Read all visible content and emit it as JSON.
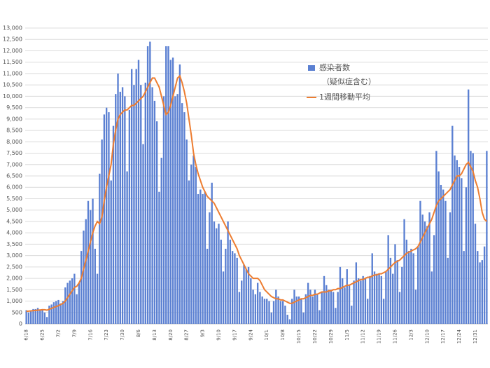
{
  "chart_data": {
    "type": "bar",
    "categories": [
      "6/18",
      null,
      null,
      null,
      null,
      null,
      null,
      "6/25",
      null,
      null,
      null,
      null,
      null,
      null,
      "7/2",
      null,
      null,
      null,
      null,
      null,
      null,
      "7/9",
      null,
      null,
      null,
      null,
      null,
      null,
      "7/16",
      null,
      null,
      null,
      null,
      null,
      null,
      "7/23",
      null,
      null,
      null,
      null,
      null,
      null,
      "7/30",
      null,
      null,
      null,
      null,
      null,
      null,
      "8/6",
      null,
      null,
      null,
      null,
      null,
      null,
      "8/13",
      null,
      null,
      null,
      null,
      null,
      null,
      "8/20",
      null,
      null,
      null,
      null,
      null,
      null,
      "8/27",
      null,
      null,
      null,
      null,
      null,
      null,
      "9/3",
      null,
      null,
      null,
      null,
      null,
      null,
      "9/10",
      null,
      null,
      null,
      null,
      null,
      null,
      "9/17",
      null,
      null,
      null,
      null,
      null,
      null,
      "9/24",
      null,
      null,
      null,
      null,
      null,
      null,
      "10/1",
      null,
      null,
      null,
      null,
      null,
      null,
      "10/8",
      null,
      null,
      null,
      null,
      null,
      null,
      "10/15",
      null,
      null,
      null,
      null,
      null,
      null,
      "10/22",
      null,
      null,
      null,
      null,
      null,
      null,
      "10/29",
      null,
      null,
      null,
      null,
      null,
      null,
      "11/5",
      null,
      null,
      null,
      null,
      null,
      null,
      "11/12",
      null,
      null,
      null,
      null,
      null,
      null,
      "11/19",
      null,
      null,
      null,
      null,
      null,
      null,
      "11/26",
      null,
      null,
      null,
      null,
      null,
      null,
      "12/3",
      null,
      null,
      null,
      null,
      null,
      null,
      "12/10",
      null,
      null,
      null,
      null,
      null,
      null,
      "12/17",
      null,
      null,
      null,
      null,
      null,
      null,
      "12/24",
      null,
      null,
      null,
      null,
      null,
      null,
      "12/31",
      null,
      null,
      null,
      null,
      null
    ],
    "series": [
      {
        "name": "感染者数\n（疑似症含む）",
        "type": "bar",
        "color": "#5b80d2",
        "values": [
          600,
          500,
          550,
          650,
          650,
          700,
          600,
          650,
          500,
          300,
          800,
          850,
          950,
          1000,
          1050,
          900,
          1000,
          1600,
          1800,
          1900,
          2000,
          2200,
          1300,
          1800,
          3200,
          4100,
          4600,
          5400,
          5000,
          5500,
          3300,
          2200,
          6600,
          8100,
          9200,
          9500,
          9300,
          6300,
          8700,
          10100,
          11000,
          10200,
          10400,
          10000,
          6700,
          9400,
          11200,
          10500,
          11200,
          11600,
          10500,
          7900,
          10600,
          12200,
          12400,
          10400,
          9800,
          8900,
          5800,
          7300,
          10000,
          12200,
          12200,
          11600,
          11700,
          10000,
          10100,
          11400,
          9700,
          9300,
          8100,
          6300,
          7000,
          7400,
          6900,
          5700,
          5900,
          5700,
          5800,
          3300,
          4900,
          6200,
          4500,
          4200,
          4400,
          3700,
          2300,
          3300,
          4500,
          3700,
          3200,
          3100,
          2900,
          1400,
          1900,
          2600,
          2400,
          2500,
          2000,
          1500,
          1300,
          1800,
          1400,
          1200,
          1100,
          1100,
          1000,
          500,
          1000,
          1500,
          1200,
          1000,
          1000,
          800,
          400,
          200,
          1100,
          1500,
          1200,
          1200,
          1100,
          500,
          1300,
          1800,
          1500,
          1200,
          1500,
          1300,
          600,
          1400,
          2100,
          1700,
          1500,
          1500,
          1400,
          700,
          1400,
          2500,
          2000,
          1600,
          2400,
          1700,
          800,
          1900,
          2700,
          2000,
          1900,
          2100,
          2000,
          1100,
          2100,
          3100,
          2300,
          2200,
          2200,
          2100,
          1100,
          2300,
          3900,
          2900,
          2200,
          3500,
          2800,
          1400,
          2500,
          4600,
          3700,
          3200,
          3300,
          3100,
          1500,
          3400,
          5400,
          4800,
          4500,
          4300,
          4900,
          2300,
          3900,
          7600,
          6700,
          6100,
          5900,
          5400,
          2900,
          4900,
          8700,
          7400,
          7200,
          6900,
          6400,
          3200,
          6000,
          10300,
          7600,
          7500,
          4400,
          3200,
          2700,
          2800,
          3400,
          7600
        ]
      },
      {
        "name": "1週間移動平均",
        "type": "line",
        "color": "#ed7d31",
        "values": [
          550,
          560,
          570,
          580,
          590,
          600,
          610,
          620,
          620,
          600,
          640,
          680,
          720,
          760,
          800,
          850,
          900,
          1000,
          1150,
          1300,
          1450,
          1600,
          1650,
          1800,
          2000,
          2400,
          2800,
          3200,
          3600,
          4000,
          4300,
          4500,
          4400,
          4700,
          5400,
          6000,
          6500,
          7000,
          7900,
          8500,
          9000,
          9200,
          9300,
          9400,
          9400,
          9500,
          9600,
          9600,
          9700,
          9800,
          9900,
          10000,
          10200,
          10400,
          10600,
          10800,
          10800,
          10600,
          10400,
          10000,
          9600,
          9200,
          9300,
          9600,
          10000,
          10400,
          10800,
          10900,
          10600,
          10200,
          9700,
          9000,
          8300,
          7500,
          7000,
          6600,
          6300,
          6000,
          5800,
          5600,
          5500,
          5400,
          5300,
          5100,
          4900,
          4700,
          4500,
          4300,
          4100,
          3900,
          3700,
          3500,
          3300,
          3000,
          2800,
          2600,
          2400,
          2200,
          2100,
          2000,
          2000,
          2000,
          1900,
          1700,
          1500,
          1400,
          1300,
          1200,
          1150,
          1100,
          1100,
          1050,
          1050,
          1000,
          950,
          900,
          900,
          950,
          1000,
          1050,
          1100,
          1100,
          1150,
          1200,
          1250,
          1250,
          1300,
          1300,
          1350,
          1400,
          1400,
          1400,
          1450,
          1450,
          1500,
          1500,
          1550,
          1550,
          1600,
          1650,
          1700,
          1700,
          1750,
          1800,
          1850,
          1900,
          1950,
          1950,
          2000,
          2050,
          2050,
          2100,
          2150,
          2150,
          2200,
          2200,
          2250,
          2300,
          2400,
          2500,
          2600,
          2700,
          2750,
          2800,
          2900,
          3000,
          3100,
          3150,
          3200,
          3250,
          3300,
          3400,
          3600,
          3800,
          4000,
          4200,
          4400,
          4600,
          4900,
          5200,
          5400,
          5500,
          5600,
          5700,
          5800,
          5900,
          6100,
          6300,
          6500,
          6500,
          6600,
          6800,
          7000,
          7100,
          6900,
          6700,
          6300,
          6000,
          5500,
          4900,
          4600,
          4500
        ]
      }
    ],
    "ylim": [
      0,
      13000
    ],
    "yticks": [
      0,
      500,
      {
        "value": 1000,
        "label": "1,000"
      },
      {
        "value": 1500,
        "label": "1,500"
      },
      {
        "value": 2000,
        "label": "2,000"
      },
      {
        "value": 2500,
        "label": "2,500"
      },
      {
        "value": 3000,
        "label": "3,000"
      },
      {
        "value": 3500,
        "label": "3,500"
      },
      {
        "value": 4000,
        "label": "4,000"
      },
      {
        "value": 4500,
        "label": "4,500"
      },
      {
        "value": 5000,
        "label": "5,000"
      },
      {
        "value": 5500,
        "label": "5,500"
      },
      {
        "value": 6000,
        "label": "6,000"
      },
      {
        "value": 6500,
        "label": "6,500"
      },
      {
        "value": 7000,
        "label": "7,000"
      },
      {
        "value": 7500,
        "label": "7,500"
      },
      {
        "value": 8000,
        "label": "8,000"
      },
      {
        "value": 8500,
        "label": "8,500"
      },
      {
        "value": 9000,
        "label": "9,000"
      },
      {
        "value": 9500,
        "label": "9,500"
      },
      {
        "value": 10000,
        "label": "10,000"
      },
      {
        "value": 10500,
        "label": "10,500"
      },
      {
        "value": 11000,
        "label": "11,000"
      },
      {
        "value": 11500,
        "label": "11,500"
      },
      {
        "value": 12000,
        "label": "12,000"
      },
      {
        "value": 12500,
        "label": "12,500"
      },
      {
        "value": 13000,
        "label": "13,000"
      }
    ],
    "grid": true,
    "legend": "upper right"
  }
}
